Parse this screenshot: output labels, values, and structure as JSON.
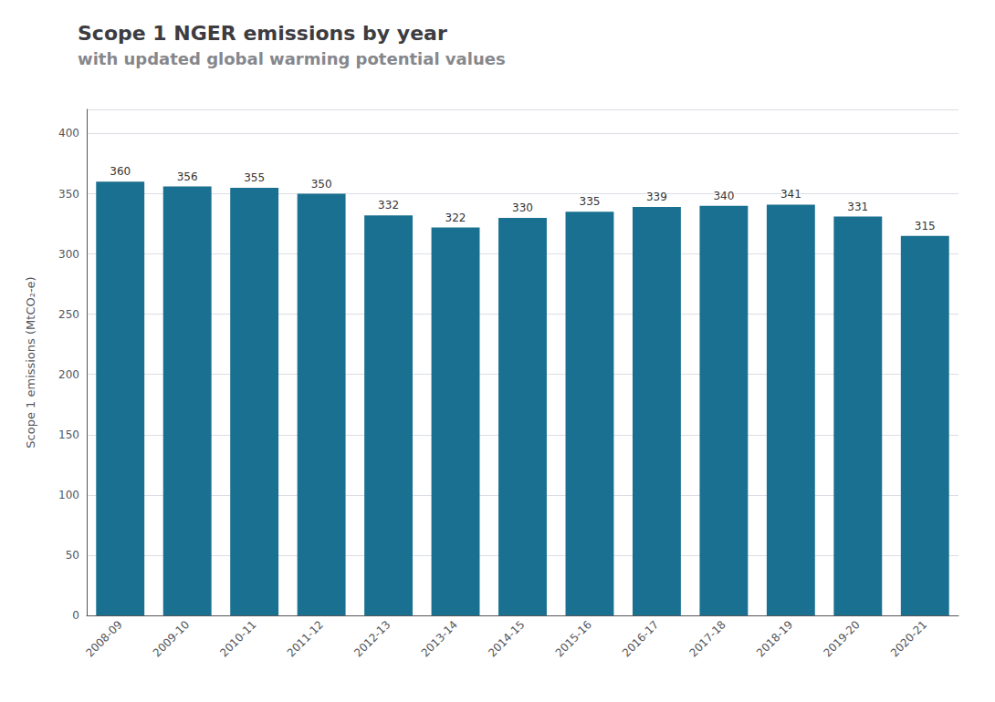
{
  "chart_data": {
    "type": "bar",
    "title": "Scope 1 NGER emissions by year",
    "subtitle": "with updated global warming potential values",
    "categories": [
      "2008-09",
      "2009-10",
      "2010-11",
      "2011-12",
      "2012-13",
      "2013-14",
      "2014-15",
      "2015-16",
      "2016-17",
      "2017-18",
      "2018-19",
      "2019-20",
      "2020-21"
    ],
    "values": [
      360,
      356,
      355,
      350,
      332,
      322,
      330,
      335,
      339,
      340,
      341,
      331,
      315
    ],
    "color": "#1a7090",
    "ylabel": "Scope 1 emissions (MtCO₂-e)",
    "ylim": [
      0,
      420
    ],
    "yticks": [
      0,
      50,
      100,
      150,
      200,
      250,
      300,
      350,
      400
    ],
    "grid": true,
    "data_labels": true
  }
}
